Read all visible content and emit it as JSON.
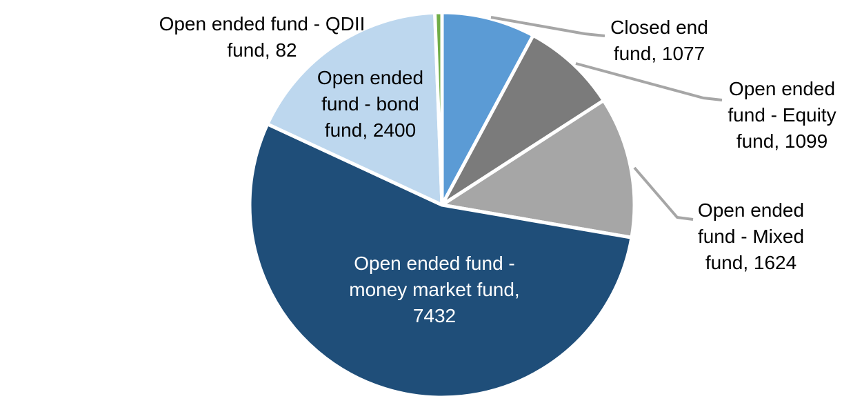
{
  "chart_data": {
    "type": "pie",
    "direction": "clockwise",
    "start_angle_deg": 0,
    "legend_position": "none",
    "label_style": "callout-with-values",
    "slice_border_color": "#FFFFFF",
    "leader_line_color": "#A6A6A6",
    "slices": [
      {
        "label": "Closed end fund",
        "value": 1077,
        "color": "#5B9BD5",
        "callout_lines": [
          "Closed end",
          "fund, 1077"
        ],
        "label_color": "#000000"
      },
      {
        "label": "Open ended fund - Equity fund",
        "value": 1099,
        "color": "#7B7B7B",
        "callout_lines": [
          "Open ended",
          "fund - Equity",
          "fund, 1099"
        ],
        "label_color": "#000000"
      },
      {
        "label": "Open ended fund - Mixed fund",
        "value": 1624,
        "color": "#A6A6A6",
        "callout_lines": [
          "Open ended",
          "fund - Mixed",
          "fund, 1624"
        ],
        "label_color": "#000000"
      },
      {
        "label": "Open ended fund - money market fund",
        "value": 7432,
        "color": "#1F4E79",
        "callout_lines": [
          "Open ended fund -",
          "money market fund,",
          "7432"
        ],
        "label_color": "#FFFFFF"
      },
      {
        "label": "Open ended fund - bond fund",
        "value": 2400,
        "color": "#BDD7EE",
        "callout_lines": [
          "Open ended",
          "fund - bond",
          "fund, 2400"
        ],
        "label_color": "#000000"
      },
      {
        "label": "Open ended fund - QDII fund",
        "value": 82,
        "color": "#70AD47",
        "callout_lines": [
          "Open ended fund - QDII",
          "fund, 82"
        ],
        "label_color": "#000000"
      }
    ]
  }
}
